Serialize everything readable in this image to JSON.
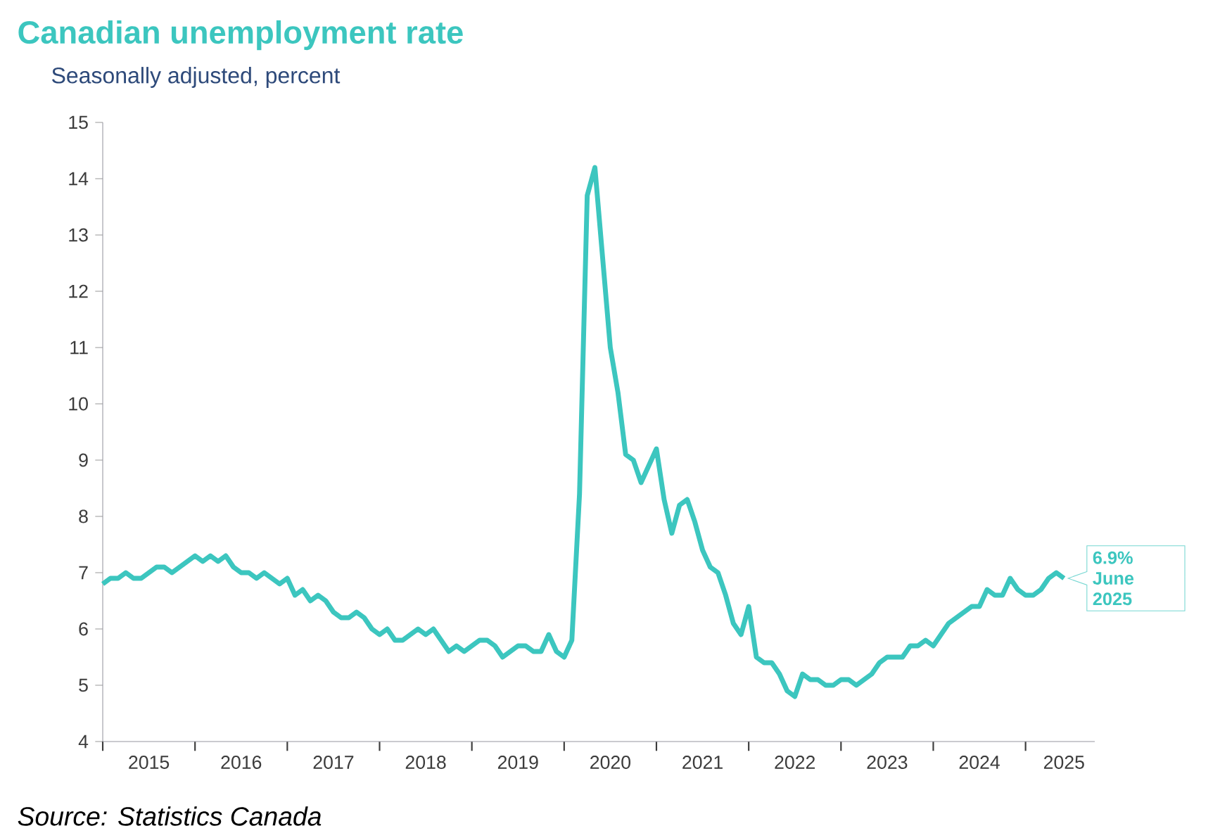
{
  "chart_data": {
    "type": "line",
    "title": "Canadian unemployment rate",
    "subtitle": "Seasonally adjusted, percent",
    "x": [
      "2015-01",
      "2015-02",
      "2015-03",
      "2015-04",
      "2015-05",
      "2015-06",
      "2015-07",
      "2015-08",
      "2015-09",
      "2015-10",
      "2015-11",
      "2015-12",
      "2016-01",
      "2016-02",
      "2016-03",
      "2016-04",
      "2016-05",
      "2016-06",
      "2016-07",
      "2016-08",
      "2016-09",
      "2016-10",
      "2016-11",
      "2016-12",
      "2017-01",
      "2017-02",
      "2017-03",
      "2017-04",
      "2017-05",
      "2017-06",
      "2017-07",
      "2017-08",
      "2017-09",
      "2017-10",
      "2017-11",
      "2017-12",
      "2018-01",
      "2018-02",
      "2018-03",
      "2018-04",
      "2018-05",
      "2018-06",
      "2018-07",
      "2018-08",
      "2018-09",
      "2018-10",
      "2018-11",
      "2018-12",
      "2019-01",
      "2019-02",
      "2019-03",
      "2019-04",
      "2019-05",
      "2019-06",
      "2019-07",
      "2019-08",
      "2019-09",
      "2019-10",
      "2019-11",
      "2019-12",
      "2020-01",
      "2020-02",
      "2020-03",
      "2020-04",
      "2020-05",
      "2020-06",
      "2020-07",
      "2020-08",
      "2020-09",
      "2020-10",
      "2020-11",
      "2020-12",
      "2021-01",
      "2021-02",
      "2021-03",
      "2021-04",
      "2021-05",
      "2021-06",
      "2021-07",
      "2021-08",
      "2021-09",
      "2021-10",
      "2021-11",
      "2021-12",
      "2022-01",
      "2022-02",
      "2022-03",
      "2022-04",
      "2022-05",
      "2022-06",
      "2022-07",
      "2022-08",
      "2022-09",
      "2022-10",
      "2022-11",
      "2022-12",
      "2023-01",
      "2023-02",
      "2023-03",
      "2023-04",
      "2023-05",
      "2023-06",
      "2023-07",
      "2023-08",
      "2023-09",
      "2023-10",
      "2023-11",
      "2023-12",
      "2024-01",
      "2024-02",
      "2024-03",
      "2024-04",
      "2024-05",
      "2024-06",
      "2024-07",
      "2024-08",
      "2024-09",
      "2024-10",
      "2024-11",
      "2024-12",
      "2025-01",
      "2025-02",
      "2025-03",
      "2025-04",
      "2025-05",
      "2025-06"
    ],
    "values": [
      6.8,
      6.9,
      6.9,
      7.0,
      6.9,
      6.9,
      7.0,
      7.1,
      7.1,
      7.0,
      7.1,
      7.2,
      7.3,
      7.2,
      7.3,
      7.2,
      7.3,
      7.1,
      7.0,
      7.0,
      6.9,
      7.0,
      6.9,
      6.8,
      6.9,
      6.6,
      6.7,
      6.5,
      6.6,
      6.5,
      6.3,
      6.2,
      6.2,
      6.3,
      6.2,
      6.0,
      5.9,
      6.0,
      5.8,
      5.8,
      5.9,
      6.0,
      5.9,
      6.0,
      5.8,
      5.6,
      5.7,
      5.6,
      5.7,
      5.8,
      5.8,
      5.7,
      5.5,
      5.6,
      5.7,
      5.7,
      5.6,
      5.6,
      5.9,
      5.6,
      5.5,
      5.8,
      8.4,
      13.7,
      14.2,
      12.6,
      11.0,
      10.2,
      9.1,
      9.0,
      8.6,
      8.9,
      9.2,
      8.3,
      7.7,
      8.2,
      8.3,
      7.9,
      7.4,
      7.1,
      7.0,
      6.6,
      6.1,
      5.9,
      6.4,
      5.5,
      5.4,
      5.4,
      5.2,
      4.9,
      4.8,
      5.2,
      5.1,
      5.1,
      5.0,
      5.0,
      5.1,
      5.1,
      5.0,
      5.1,
      5.2,
      5.4,
      5.5,
      5.5,
      5.5,
      5.7,
      5.7,
      5.8,
      5.7,
      5.9,
      6.1,
      6.2,
      6.3,
      6.4,
      6.4,
      6.7,
      6.6,
      6.6,
      6.9,
      6.7,
      6.6,
      6.6,
      6.7,
      6.9,
      7.0,
      6.9
    ],
    "color": "#3cc6bf",
    "xlim": [
      "2015-01",
      "2025-10"
    ],
    "xticks": [
      {
        "value": "2015-01",
        "label": null
      },
      {
        "value": "2016-01",
        "label": null
      },
      {
        "value": "2017-01",
        "label": null
      },
      {
        "value": "2018-01",
        "label": null
      },
      {
        "value": "2019-01",
        "label": null
      },
      {
        "value": "2020-01",
        "label": null
      },
      {
        "value": "2021-01",
        "label": null
      },
      {
        "value": "2022-01",
        "label": null
      },
      {
        "value": "2023-01",
        "label": null
      },
      {
        "value": "2024-01",
        "label": null
      },
      {
        "value": "2025-01",
        "label": null
      },
      {
        "value": "2015-07",
        "label": "2015"
      },
      {
        "value": "2016-07",
        "label": "2016"
      },
      {
        "value": "2017-07",
        "label": "2017"
      },
      {
        "value": "2018-07",
        "label": "2018"
      },
      {
        "value": "2019-07",
        "label": "2019"
      },
      {
        "value": "2020-07",
        "label": "2020"
      },
      {
        "value": "2021-07",
        "label": "2021"
      },
      {
        "value": "2022-07",
        "label": "2022"
      },
      {
        "value": "2023-07",
        "label": "2023"
      },
      {
        "value": "2024-07",
        "label": "2024"
      },
      {
        "value": "2025-06",
        "label": "2025"
      }
    ],
    "ylim": [
      4,
      15
    ],
    "yticks": [
      4,
      5,
      6,
      7,
      8,
      9,
      10,
      11,
      12,
      13,
      14,
      15
    ],
    "grid": false,
    "marker": "none",
    "line_style": "solid",
    "annotations": [
      {
        "text": "6.9% June 2025",
        "x": "2025-06",
        "y": 6.9
      },
      "Source: Statistics Canada"
    ]
  }
}
